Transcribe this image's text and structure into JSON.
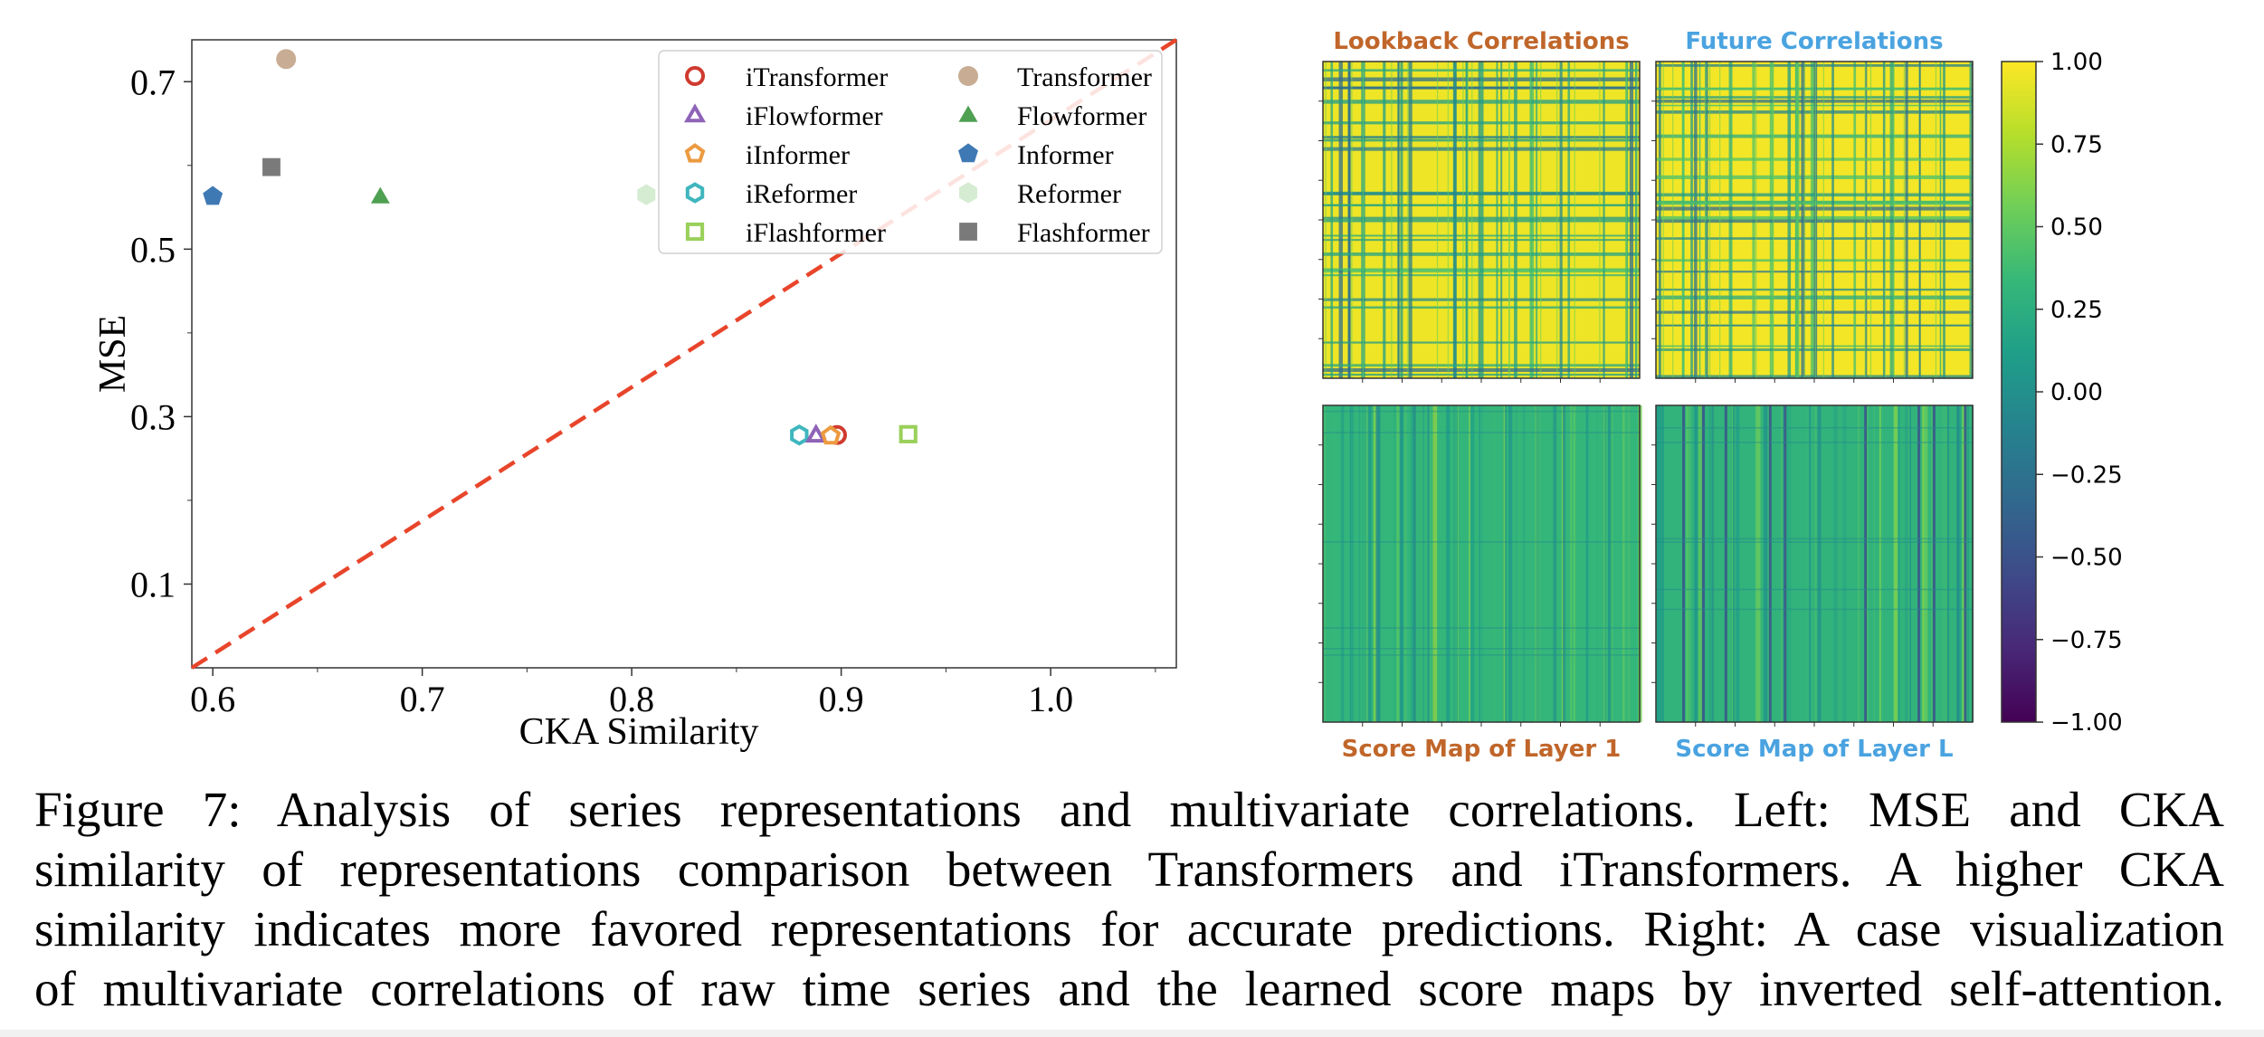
{
  "chart_data": [
    {
      "type": "scatter",
      "xlabel": "CKA Similarity",
      "ylabel": "MSE",
      "xlim": [
        0.59,
        1.06
      ],
      "ylim": [
        0.0,
        0.75
      ],
      "xticks": [
        0.6,
        0.7,
        0.8,
        0.9,
        1.0
      ],
      "xtick_labels": [
        "0.6",
        "0.7",
        "0.8",
        "0.9",
        "1.0"
      ],
      "yticks": [
        0.1,
        0.3,
        0.5,
        0.7
      ],
      "ytick_labels": [
        "0.1",
        "0.3",
        "0.5",
        "0.7"
      ],
      "grid": false,
      "legend_placement": "top-right",
      "diagonal_line": {
        "from": [
          0.59,
          0.0
        ],
        "to": [
          1.06,
          0.75
        ],
        "color": "#e8452b",
        "style": "dashed"
      },
      "series": [
        {
          "name": "iTransformer",
          "marker": "circle-open",
          "color": "#d03a2e",
          "x": 0.898,
          "y": 0.278
        },
        {
          "name": "iFlowformer",
          "marker": "triangle-open",
          "color": "#8e63b8",
          "x": 0.888,
          "y": 0.278
        },
        {
          "name": "iInformer",
          "marker": "pentagon-open",
          "color": "#ec9a40",
          "x": 0.895,
          "y": 0.277
        },
        {
          "name": "iReformer",
          "marker": "hexagon-open",
          "color": "#3fb6be",
          "x": 0.88,
          "y": 0.278
        },
        {
          "name": "iFlashformer",
          "marker": "square-open",
          "color": "#9ad05a",
          "x": 0.932,
          "y": 0.279
        },
        {
          "name": "Transformer",
          "marker": "circle-filled",
          "color": "#c8ad94",
          "x": 0.635,
          "y": 0.727
        },
        {
          "name": "Flowformer",
          "marker": "triangle-filled",
          "color": "#4fa052",
          "x": 0.68,
          "y": 0.563
        },
        {
          "name": "Informer",
          "marker": "pentagon-filled",
          "color": "#3f79b4",
          "x": 0.6,
          "y": 0.563
        },
        {
          "name": "Reformer",
          "marker": "hexagon-filled",
          "color": "#d6ecd2",
          "x": 0.807,
          "y": 0.565
        },
        {
          "name": "Flashformer",
          "marker": "square-filled",
          "color": "#7a7a7a",
          "x": 0.628,
          "y": 0.598
        }
      ],
      "legend_columns": [
        [
          "iTransformer",
          "iFlowformer",
          "iInformer",
          "iReformer",
          "iFlashformer"
        ],
        [
          "Transformer",
          "Flowformer",
          "Informer",
          "Reformer",
          "Flashformer"
        ]
      ]
    },
    {
      "type": "heatmap",
      "colormap": "viridis",
      "panels": [
        {
          "title": "Lookback Correlations",
          "title_color": "#c0662a",
          "title_position": "top",
          "dominant_value": 0.95
        },
        {
          "title": "Future Correlations",
          "title_color": "#4aa3e0",
          "title_position": "top",
          "dominant_value": 0.97
        },
        {
          "title": "Score Map of Layer 1",
          "title_color": "#c0662a",
          "title_position": "bottom",
          "dominant_value": 0.32
        },
        {
          "title": "Score Map of Layer L",
          "title_color": "#4aa3e0",
          "title_position": "bottom",
          "dominant_value": 0.3
        }
      ],
      "colorbar": {
        "min": -1.0,
        "max": 1.0,
        "ticks": [
          1.0,
          0.75,
          0.5,
          0.25,
          0.0,
          -0.25,
          -0.5,
          -0.75,
          -1.0
        ],
        "tick_labels": [
          "1.00",
          "0.75",
          "0.50",
          "0.25",
          "0.00",
          "−0.25",
          "−0.50",
          "−0.75",
          "−1.00"
        ]
      }
    }
  ],
  "caption": {
    "lines": [
      "Figure 7: Analysis of series representations and multivariate correlations. Left: MSE and CKA",
      "similarity of representations comparison between Transformers and iTransformers. A higher CKA",
      "similarity indicates more favored representations for accurate predictions. Right: A case visualization",
      "of multivariate correlations of raw time series and the learned score maps by inverted self-attention."
    ]
  }
}
